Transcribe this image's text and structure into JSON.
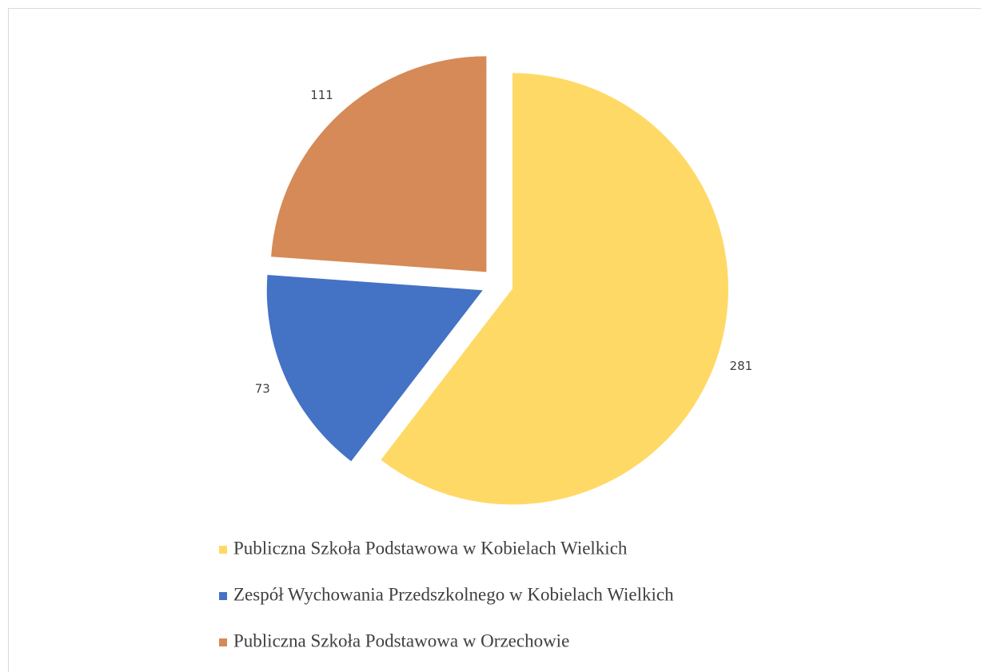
{
  "chart_data": {
    "type": "pie",
    "categories": [
      "Publiczna Szkoła Podstawowa w Kobielach Wielkich",
      "Zespół Wychowania Przedszkolnego w Kobielach Wielkich",
      "Publiczna Szkoła Podstawowa w Orzechowie"
    ],
    "values": [
      281,
      73,
      111
    ],
    "colors": [
      "#ffd966",
      "#4472c4",
      "#d68a57"
    ],
    "legend": "bottom"
  }
}
